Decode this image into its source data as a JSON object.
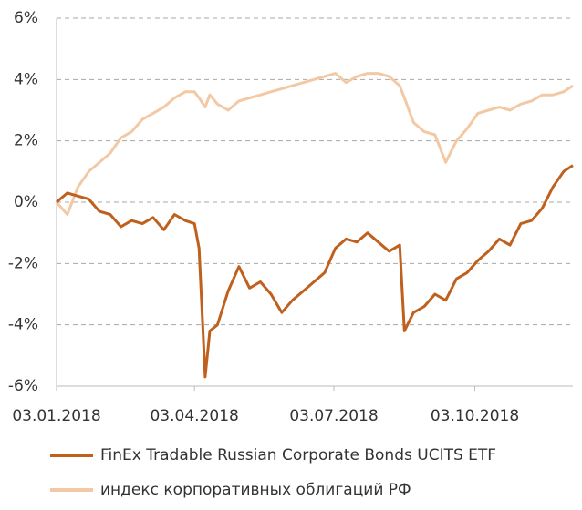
{
  "chart_data": {
    "type": "line",
    "x": [
      "03.01.2018",
      "10.01.2018",
      "17.01.2018",
      "24.01.2018",
      "31.01.2018",
      "07.02.2018",
      "14.02.2018",
      "21.02.2018",
      "28.02.2018",
      "07.03.2018",
      "14.03.2018",
      "21.03.2018",
      "28.03.2018",
      "03.04.2018",
      "06.04.2018",
      "10.04.2018",
      "13.04.2018",
      "18.04.2018",
      "25.04.2018",
      "02.05.2018",
      "09.05.2018",
      "16.05.2018",
      "23.05.2018",
      "30.05.2018",
      "06.06.2018",
      "13.06.2018",
      "20.06.2018",
      "27.06.2018",
      "04.07.2018",
      "11.07.2018",
      "18.07.2018",
      "25.07.2018",
      "01.08.2018",
      "08.08.2018",
      "15.08.2018",
      "18.08.2018",
      "24.08.2018",
      "31.08.2018",
      "07.09.2018",
      "14.09.2018",
      "21.09.2018",
      "28.09.2018",
      "05.10.2018",
      "12.10.2018",
      "19.10.2018",
      "26.10.2018",
      "02.11.2018",
      "09.11.2018",
      "16.11.2018",
      "23.11.2018",
      "30.11.2018",
      "06.12.2018"
    ],
    "series": [
      {
        "name": "FinEx Tradable Russian Corporate Bonds UCITS ETF",
        "color": "#c0601e",
        "values": [
          0,
          0.3,
          0.2,
          0.1,
          -0.3,
          -0.4,
          -0.8,
          -0.6,
          -0.7,
          -0.5,
          -0.9,
          -0.4,
          -0.6,
          -0.7,
          -1.5,
          -5.7,
          -4.2,
          -4.0,
          -2.9,
          -2.1,
          -2.8,
          -2.6,
          -3.0,
          -3.6,
          -3.2,
          -2.9,
          -2.6,
          -2.3,
          -1.5,
          -1.2,
          -1.3,
          -1.0,
          -1.3,
          -1.6,
          -1.4,
          -4.2,
          -3.6,
          -3.4,
          -3.0,
          -3.2,
          -2.5,
          -2.3,
          -1.9,
          -1.6,
          -1.2,
          -1.4,
          -0.7,
          -0.6,
          -0.2,
          0.5,
          1.0,
          1.2
        ]
      },
      {
        "name": "индекс корпоративных облигаций РФ",
        "color": "#f3c9a5",
        "values": [
          0,
          -0.4,
          0.5,
          1.0,
          1.3,
          1.6,
          2.1,
          2.3,
          2.7,
          2.9,
          3.1,
          3.4,
          3.6,
          3.6,
          3.4,
          3.1,
          3.5,
          3.2,
          3.0,
          3.3,
          3.4,
          3.5,
          3.6,
          3.7,
          3.8,
          3.9,
          4.0,
          4.1,
          4.2,
          3.9,
          4.1,
          4.2,
          4.2,
          4.1,
          3.8,
          3.4,
          2.6,
          2.3,
          2.2,
          1.3,
          2.0,
          2.4,
          2.9,
          3.0,
          3.1,
          3.0,
          3.2,
          3.3,
          3.5,
          3.5,
          3.6,
          3.8
        ]
      }
    ],
    "xlim": [
      "03.01.2018",
      "06.12.2018"
    ],
    "xticks": [
      "03.01.2018",
      "03.04.2018",
      "03.07.2018",
      "03.10.2018"
    ],
    "ylim": [
      -6,
      6
    ],
    "yticks": [
      {
        "value": -6,
        "label": "-6%"
      },
      {
        "value": -4,
        "label": "-4%"
      },
      {
        "value": -2,
        "label": "-2%"
      },
      {
        "value": 0,
        "label": "0%"
      },
      {
        "value": 2,
        "label": "2%"
      },
      {
        "value": 4,
        "label": "4%"
      },
      {
        "value": 6,
        "label": "6%"
      }
    ],
    "grid": true
  }
}
